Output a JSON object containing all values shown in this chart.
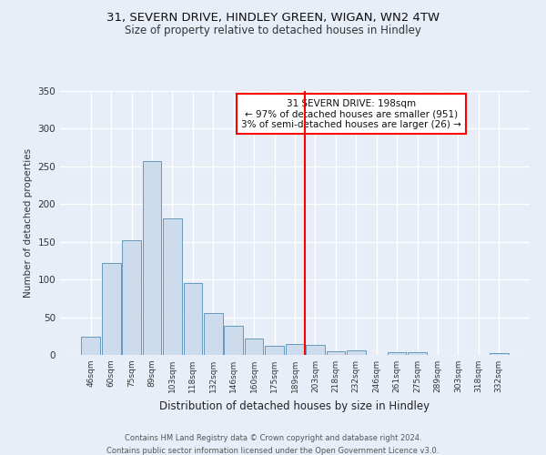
{
  "title1": "31, SEVERN DRIVE, HINDLEY GREEN, WIGAN, WN2 4TW",
  "title2": "Size of property relative to detached houses in Hindley",
  "xlabel": "Distribution of detached houses by size in Hindley",
  "ylabel": "Number of detached properties",
  "bar_labels": [
    "46sqm",
    "60sqm",
    "75sqm",
    "89sqm",
    "103sqm",
    "118sqm",
    "132sqm",
    "146sqm",
    "160sqm",
    "175sqm",
    "189sqm",
    "203sqm",
    "218sqm",
    "232sqm",
    "246sqm",
    "261sqm",
    "275sqm",
    "289sqm",
    "303sqm",
    "318sqm",
    "332sqm"
  ],
  "bar_values": [
    24,
    122,
    152,
    257,
    181,
    95,
    55,
    39,
    22,
    12,
    14,
    13,
    5,
    6,
    0,
    4,
    4,
    0,
    0,
    0,
    2
  ],
  "bar_color": "#ccdcec",
  "bar_edge_color": "#6699bb",
  "vline_x": 11.0,
  "vline_color": "red",
  "annotation_title": "31 SEVERN DRIVE: 198sqm",
  "annotation_line1": "← 97% of detached houses are smaller (951)",
  "annotation_line2": "3% of semi-detached houses are larger (26) →",
  "annotation_box_color": "white",
  "annotation_box_edge": "red",
  "ylim": [
    0,
    350
  ],
  "yticks": [
    0,
    50,
    100,
    150,
    200,
    250,
    300,
    350
  ],
  "footer1": "Contains HM Land Registry data © Crown copyright and database right 2024.",
  "footer2": "Contains public sector information licensed under the Open Government Licence v3.0.",
  "bg_color": "#e8eef8",
  "plot_bg_color": "#e8eef8",
  "grid_color": "#ffffff"
}
